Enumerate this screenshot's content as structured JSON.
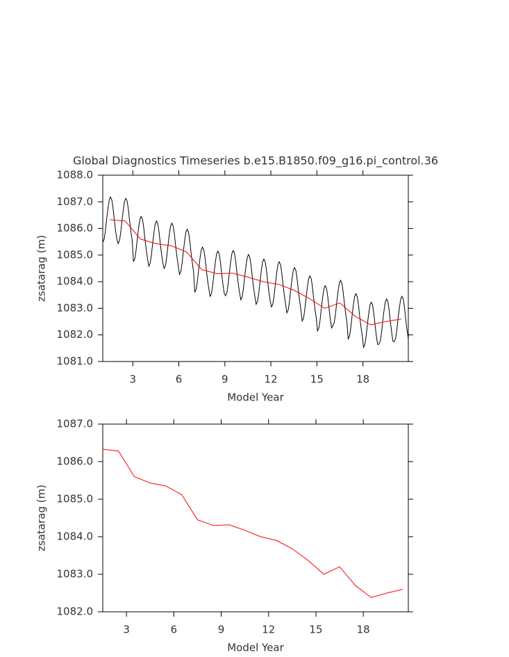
{
  "chart_data": [
    {
      "type": "line",
      "title": "Global Diagnostics Timeseries b.e15.B1850.f09_g16.pi_control.36",
      "xlabel": "Model Year",
      "ylabel": "zsatarag (m)",
      "xlim": [
        1.04,
        20.96
      ],
      "ylim": [
        1081.0,
        1088.0
      ],
      "xticks": [
        3,
        6,
        9,
        12,
        15,
        18
      ],
      "yticks": [
        {
          "value": 1081,
          "label": "1081.0"
        },
        {
          "value": 1082,
          "label": "1082.0"
        },
        {
          "value": 1083,
          "label": "1083.0"
        },
        {
          "value": 1084,
          "label": "1084.0"
        },
        {
          "value": 1085,
          "label": "1085.0"
        },
        {
          "value": 1086,
          "label": "1086.0"
        },
        {
          "value": 1087,
          "label": "1087.0"
        },
        {
          "value": 1088,
          "label": "1088.0"
        }
      ],
      "series": [
        {
          "color": "#000000",
          "x": [
            1.04,
            1.13,
            1.21,
            1.29,
            1.38,
            1.46,
            1.54,
            1.63,
            1.71,
            1.79,
            1.88,
            1.96,
            2.04,
            2.13,
            2.21,
            2.29,
            2.38,
            2.46,
            2.54,
            2.63,
            2.71,
            2.79,
            2.88,
            2.96,
            3.04,
            3.13,
            3.21,
            3.29,
            3.38,
            3.46,
            3.54,
            3.63,
            3.71,
            3.79,
            3.88,
            3.96,
            4.04,
            4.13,
            4.21,
            4.29,
            4.38,
            4.46,
            4.54,
            4.63,
            4.71,
            4.79,
            4.88,
            4.96,
            5.04,
            5.13,
            5.21,
            5.29,
            5.38,
            5.46,
            5.54,
            5.63,
            5.71,
            5.79,
            5.88,
            5.96,
            6.04,
            6.13,
            6.21,
            6.29,
            6.38,
            6.46,
            6.54,
            6.63,
            6.71,
            6.79,
            6.88,
            6.96,
            7.04,
            7.13,
            7.21,
            7.29,
            7.38,
            7.46,
            7.54,
            7.63,
            7.71,
            7.79,
            7.88,
            7.96,
            8.04,
            8.13,
            8.21,
            8.29,
            8.38,
            8.46,
            8.54,
            8.63,
            8.71,
            8.79,
            8.88,
            8.96,
            9.04,
            9.13,
            9.21,
            9.29,
            9.38,
            9.46,
            9.54,
            9.63,
            9.71,
            9.79,
            9.88,
            9.96,
            10.04,
            10.13,
            10.21,
            10.29,
            10.38,
            10.46,
            10.54,
            10.63,
            10.71,
            10.79,
            10.88,
            10.96,
            11.04,
            11.13,
            11.21,
            11.29,
            11.38,
            11.46,
            11.54,
            11.63,
            11.71,
            11.79,
            11.88,
            11.96,
            12.04,
            12.13,
            12.21,
            12.29,
            12.38,
            12.46,
            12.54,
            12.63,
            12.71,
            12.79,
            12.88,
            12.96,
            13.04,
            13.13,
            13.21,
            13.29,
            13.38,
            13.46,
            13.54,
            13.63,
            13.71,
            13.79,
            13.88,
            13.96,
            14.04,
            14.13,
            14.21,
            14.29,
            14.38,
            14.46,
            14.54,
            14.63,
            14.71,
            14.79,
            14.88,
            14.96,
            15.04,
            15.13,
            15.21,
            15.29,
            15.38,
            15.46,
            15.54,
            15.63,
            15.71,
            15.79,
            15.88,
            15.96,
            16.04,
            16.13,
            16.21,
            16.29,
            16.38,
            16.46,
            16.54,
            16.63,
            16.71,
            16.79,
            16.88,
            16.96,
            17.04,
            17.13,
            17.21,
            17.29,
            17.38,
            17.46,
            17.54,
            17.63,
            17.71,
            17.79,
            17.88,
            17.96,
            18.04,
            18.13,
            18.21,
            18.29,
            18.38,
            18.46,
            18.54,
            18.63,
            18.71,
            18.79,
            18.88,
            18.96,
            19.04,
            19.13,
            19.21,
            19.29,
            19.38,
            19.46,
            19.54,
            19.63,
            19.71,
            19.79,
            19.88,
            19.96,
            20.04,
            20.13,
            20.21,
            20.29,
            20.38,
            20.46,
            20.54,
            20.63,
            20.71,
            20.79,
            20.88,
            20.96
          ],
          "values": [
            1085.48,
            1085.59,
            1085.9,
            1086.33,
            1086.76,
            1087.07,
            1087.18,
            1087.07,
            1086.76,
            1086.33,
            1085.9,
            1085.59,
            1085.43,
            1085.54,
            1085.85,
            1086.28,
            1086.71,
            1087.02,
            1087.13,
            1087.02,
            1086.71,
            1086.28,
            1085.85,
            1085.54,
            1084.75,
            1084.86,
            1085.17,
            1085.6,
            1086.03,
            1086.34,
            1086.45,
            1086.34,
            1086.03,
            1085.6,
            1085.17,
            1084.86,
            1084.58,
            1084.69,
            1085.0,
            1085.43,
            1085.86,
            1086.17,
            1086.28,
            1086.17,
            1085.86,
            1085.43,
            1085.0,
            1084.69,
            1084.5,
            1084.61,
            1084.92,
            1085.35,
            1085.78,
            1086.09,
            1086.2,
            1086.09,
            1085.78,
            1085.35,
            1084.92,
            1084.61,
            1084.27,
            1084.38,
            1084.69,
            1085.12,
            1085.55,
            1085.86,
            1085.97,
            1085.86,
            1085.55,
            1085.12,
            1084.69,
            1084.38,
            1083.6,
            1083.71,
            1084.02,
            1084.45,
            1084.88,
            1085.19,
            1085.3,
            1085.19,
            1084.88,
            1084.45,
            1084.02,
            1083.71,
            1083.45,
            1083.56,
            1083.87,
            1084.3,
            1084.73,
            1085.04,
            1085.15,
            1085.04,
            1084.73,
            1084.3,
            1083.87,
            1083.56,
            1083.47,
            1083.58,
            1083.89,
            1084.32,
            1084.75,
            1085.06,
            1085.17,
            1085.06,
            1084.75,
            1084.32,
            1083.89,
            1083.58,
            1083.32,
            1083.43,
            1083.74,
            1084.17,
            1084.6,
            1084.91,
            1085.02,
            1084.91,
            1084.6,
            1084.17,
            1083.74,
            1083.43,
            1083.15,
            1083.26,
            1083.57,
            1084.0,
            1084.43,
            1084.74,
            1084.85,
            1084.74,
            1084.43,
            1084.0,
            1083.57,
            1083.26,
            1083.05,
            1083.16,
            1083.47,
            1083.9,
            1084.33,
            1084.64,
            1084.75,
            1084.64,
            1084.33,
            1083.9,
            1083.47,
            1083.16,
            1082.83,
            1082.94,
            1083.25,
            1083.68,
            1084.11,
            1084.42,
            1084.53,
            1084.42,
            1084.11,
            1083.68,
            1083.25,
            1082.94,
            1082.52,
            1082.63,
            1082.94,
            1083.37,
            1083.8,
            1084.11,
            1084.22,
            1084.11,
            1083.8,
            1083.37,
            1082.94,
            1082.63,
            1082.15,
            1082.26,
            1082.57,
            1083.0,
            1083.43,
            1083.74,
            1083.85,
            1083.74,
            1083.43,
            1083.0,
            1082.57,
            1082.26,
            1082.35,
            1082.46,
            1082.77,
            1083.2,
            1083.63,
            1083.94,
            1084.05,
            1083.94,
            1083.63,
            1083.2,
            1082.77,
            1082.46,
            1081.85,
            1081.96,
            1082.27,
            1082.7,
            1083.13,
            1083.44,
            1083.55,
            1083.44,
            1083.13,
            1082.7,
            1082.27,
            1081.96,
            1081.53,
            1081.64,
            1081.95,
            1082.38,
            1082.81,
            1083.12,
            1083.23,
            1083.12,
            1082.81,
            1082.38,
            1081.95,
            1081.64,
            1081.65,
            1081.76,
            1082.07,
            1082.5,
            1082.93,
            1083.24,
            1083.35,
            1083.24,
            1082.93,
            1082.5,
            1082.07,
            1081.76,
            1081.75,
            1081.86,
            1082.17,
            1082.6,
            1083.03,
            1083.34,
            1083.45,
            1083.34,
            1083.03,
            1082.6,
            1082.17,
            1081.86
          ]
        },
        {
          "color": "#ff0000",
          "x": [
            1.5,
            2.5,
            3.5,
            4.5,
            5.5,
            6.5,
            7.5,
            8.5,
            9.5,
            10.5,
            11.5,
            12.5,
            13.5,
            14.5,
            15.5,
            16.5,
            17.5,
            18.5,
            19.5,
            20.5
          ],
          "values": [
            1086.33,
            1086.28,
            1085.6,
            1085.43,
            1085.35,
            1085.12,
            1084.45,
            1084.3,
            1084.32,
            1084.17,
            1084.0,
            1083.9,
            1083.68,
            1083.37,
            1083.0,
            1083.2,
            1082.7,
            1082.38,
            1082.5,
            1082.6
          ]
        }
      ]
    },
    {
      "type": "line",
      "xlabel": "Model Year",
      "ylabel": "zsatarag (m)",
      "xlim": [
        1.5,
        20.85
      ],
      "ylim": [
        1082.0,
        1087.0
      ],
      "xticks": [
        3,
        6,
        9,
        12,
        15,
        18
      ],
      "yticks": [
        {
          "value": 1082,
          "label": "1082.0"
        },
        {
          "value": 1083,
          "label": "1083.0"
        },
        {
          "value": 1084,
          "label": "1084.0"
        },
        {
          "value": 1085,
          "label": "1085.0"
        },
        {
          "value": 1086,
          "label": "1086.0"
        },
        {
          "value": 1087,
          "label": "1087.0"
        }
      ],
      "series": [
        {
          "color": "#ff0000",
          "x": [
            1.5,
            2.5,
            3.5,
            4.5,
            5.5,
            6.5,
            7.5,
            8.5,
            9.5,
            10.5,
            11.5,
            12.5,
            13.5,
            14.5,
            15.5,
            16.5,
            17.5,
            18.5,
            19.5,
            20.5
          ],
          "values": [
            1086.33,
            1086.28,
            1085.6,
            1085.43,
            1085.35,
            1085.12,
            1084.45,
            1084.3,
            1084.32,
            1084.17,
            1084.0,
            1083.9,
            1083.68,
            1083.37,
            1083.0,
            1083.2,
            1082.7,
            1082.38,
            1082.5,
            1082.6
          ]
        }
      ]
    }
  ]
}
